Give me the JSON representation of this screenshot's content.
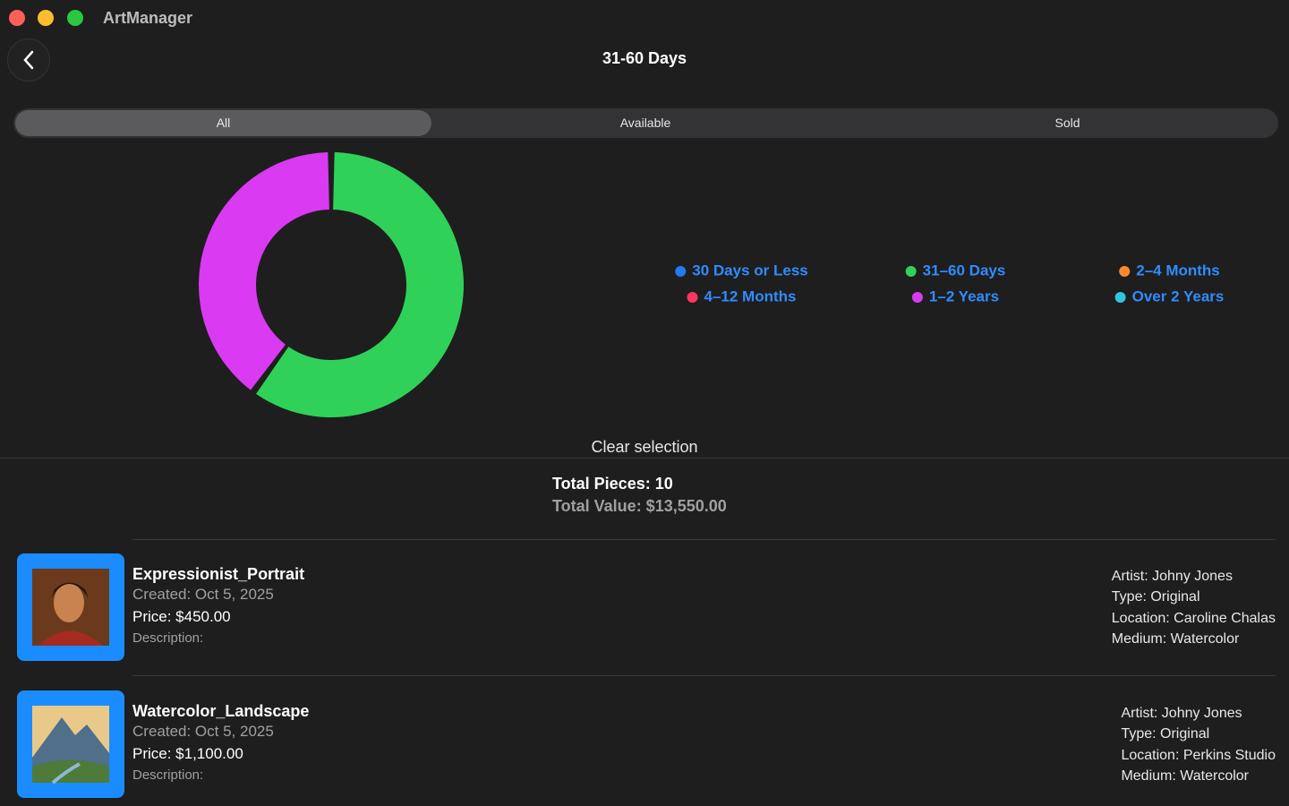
{
  "window": {
    "app_name": "ArtManager"
  },
  "header": {
    "title": "31-60 Days"
  },
  "segments": [
    "All",
    "Available",
    "Sold"
  ],
  "chart_data": {
    "type": "donut",
    "categories": [
      "30 Days or Less",
      "31–60 Days",
      "2–4 Months",
      "4–12 Months",
      "1–2 Years",
      "Over 2 Years"
    ],
    "values": [
      0,
      6,
      0,
      0,
      4,
      0
    ],
    "colors": [
      "#1f7cf2",
      "#30d158",
      "#ff8a2e",
      "#ff375f",
      "#d93af2",
      "#2fc6de"
    ]
  },
  "clear_selection": "Clear selection",
  "summary": {
    "total_pieces": "Total Pieces: 10",
    "total_value": "Total Value: $13,550.00"
  },
  "items": [
    {
      "name": "Expressionist_Portrait",
      "created": "Created: Oct 5, 2025",
      "price": "Price: $450.00",
      "description": "Description:",
      "artist": "Artist: Johny Jones",
      "type": "Type: Original",
      "location": "Location: Caroline Chalas",
      "medium": "Medium: Watercolor"
    },
    {
      "name": "Watercolor_Landscape",
      "created": "Created: Oct 5, 2025",
      "price": "Price: $1,100.00",
      "description": "Description:",
      "artist": "Artist: Johny Jones",
      "type": "Type: Original",
      "location": "Location: Perkins Studio",
      "medium": "Medium: Watercolor"
    }
  ]
}
